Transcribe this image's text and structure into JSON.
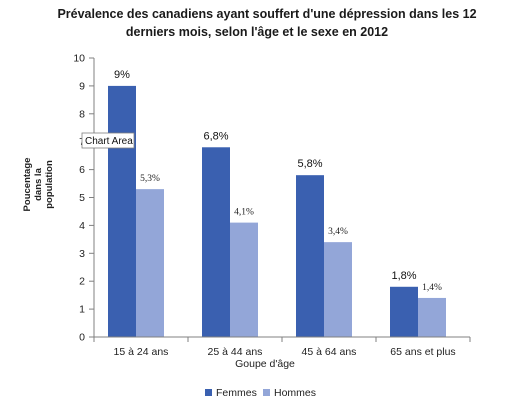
{
  "chart_data": {
    "type": "bar",
    "title_lines": [
      "Prévalence des canadiens ayant souffert d'une dépression dans  les 12",
      "derniers mois, selon l'âge et le sexe en 2012"
    ],
    "xlabel": "Goupe d'âge",
    "ylabel_lines": [
      "Poucentage",
      "dans la",
      "population"
    ],
    "ylim": [
      0,
      10
    ],
    "yticks": [
      0,
      1,
      2,
      3,
      4,
      5,
      6,
      7,
      8,
      9,
      10
    ],
    "grid": false,
    "legend_position": "bottom",
    "categories": [
      "15 à 24 ans",
      "25 à 44 ans",
      "45 à 64 ans",
      "65 ans et plus"
    ],
    "series": [
      {
        "name": "Femmes",
        "color": "#3a60b0",
        "values": [
          9,
          6.8,
          5.8,
          1.8
        ],
        "labels": [
          "9%",
          "6,8%",
          "5,8%",
          "1,8%"
        ]
      },
      {
        "name": "Hommes",
        "color": "#93a6d8",
        "values": [
          5.3,
          4.1,
          3.4,
          1.4
        ],
        "labels": [
          "5,3%",
          "4,1%",
          "3,4%",
          "1,4%"
        ]
      }
    ]
  },
  "tooltip": {
    "text": "Chart Area"
  }
}
